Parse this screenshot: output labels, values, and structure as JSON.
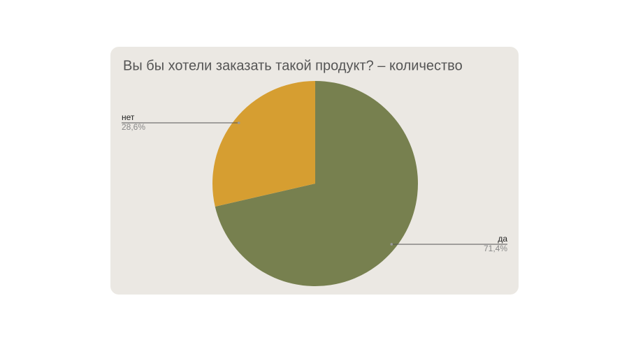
{
  "chart_data": {
    "type": "pie",
    "title": "Вы бы хотели заказать такой продукт? – количество",
    "categories": [
      "да",
      "нет"
    ],
    "values": [
      71.4,
      28.6
    ],
    "value_labels": [
      "71,4%",
      "28,6%"
    ],
    "colors": [
      "#77804f",
      "#d69e31"
    ]
  }
}
